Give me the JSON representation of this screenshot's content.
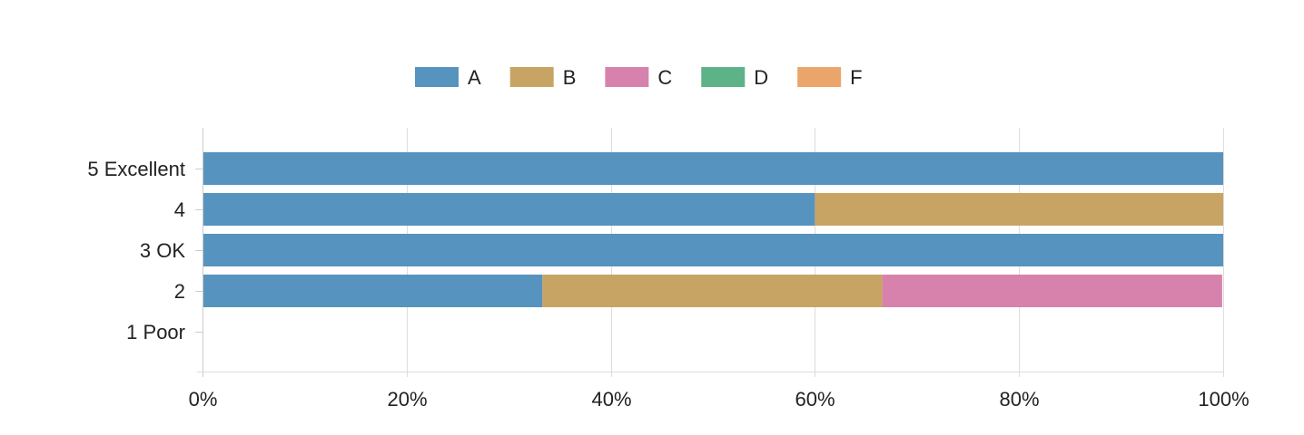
{
  "chart_data": {
    "type": "bar",
    "orientation": "horizontal",
    "stacked": "percent",
    "categories": [
      "5 Excellent",
      "4",
      "3 OK",
      "2",
      "1 Poor"
    ],
    "series": [
      {
        "name": "A",
        "color": "#5793BF",
        "values": [
          100,
          60,
          100,
          33.3,
          0
        ]
      },
      {
        "name": "B",
        "color": "#C8A464",
        "values": [
          0,
          40,
          0,
          33.3,
          0
        ]
      },
      {
        "name": "C",
        "color": "#D782AC",
        "values": [
          0,
          0,
          0,
          33.3,
          0
        ]
      },
      {
        "name": "D",
        "color": "#5DB287",
        "values": [
          0,
          0,
          0,
          0,
          0
        ]
      },
      {
        "name": "F",
        "color": "#EBA56A",
        "values": [
          0,
          0,
          0,
          0,
          0
        ]
      }
    ],
    "xlim": [
      0,
      100
    ],
    "x_ticks": [
      "0%",
      "20%",
      "40%",
      "60%",
      "80%",
      "100%"
    ],
    "grid": true,
    "legend_position": "top-center",
    "title": "",
    "xlabel": "",
    "ylabel": ""
  }
}
